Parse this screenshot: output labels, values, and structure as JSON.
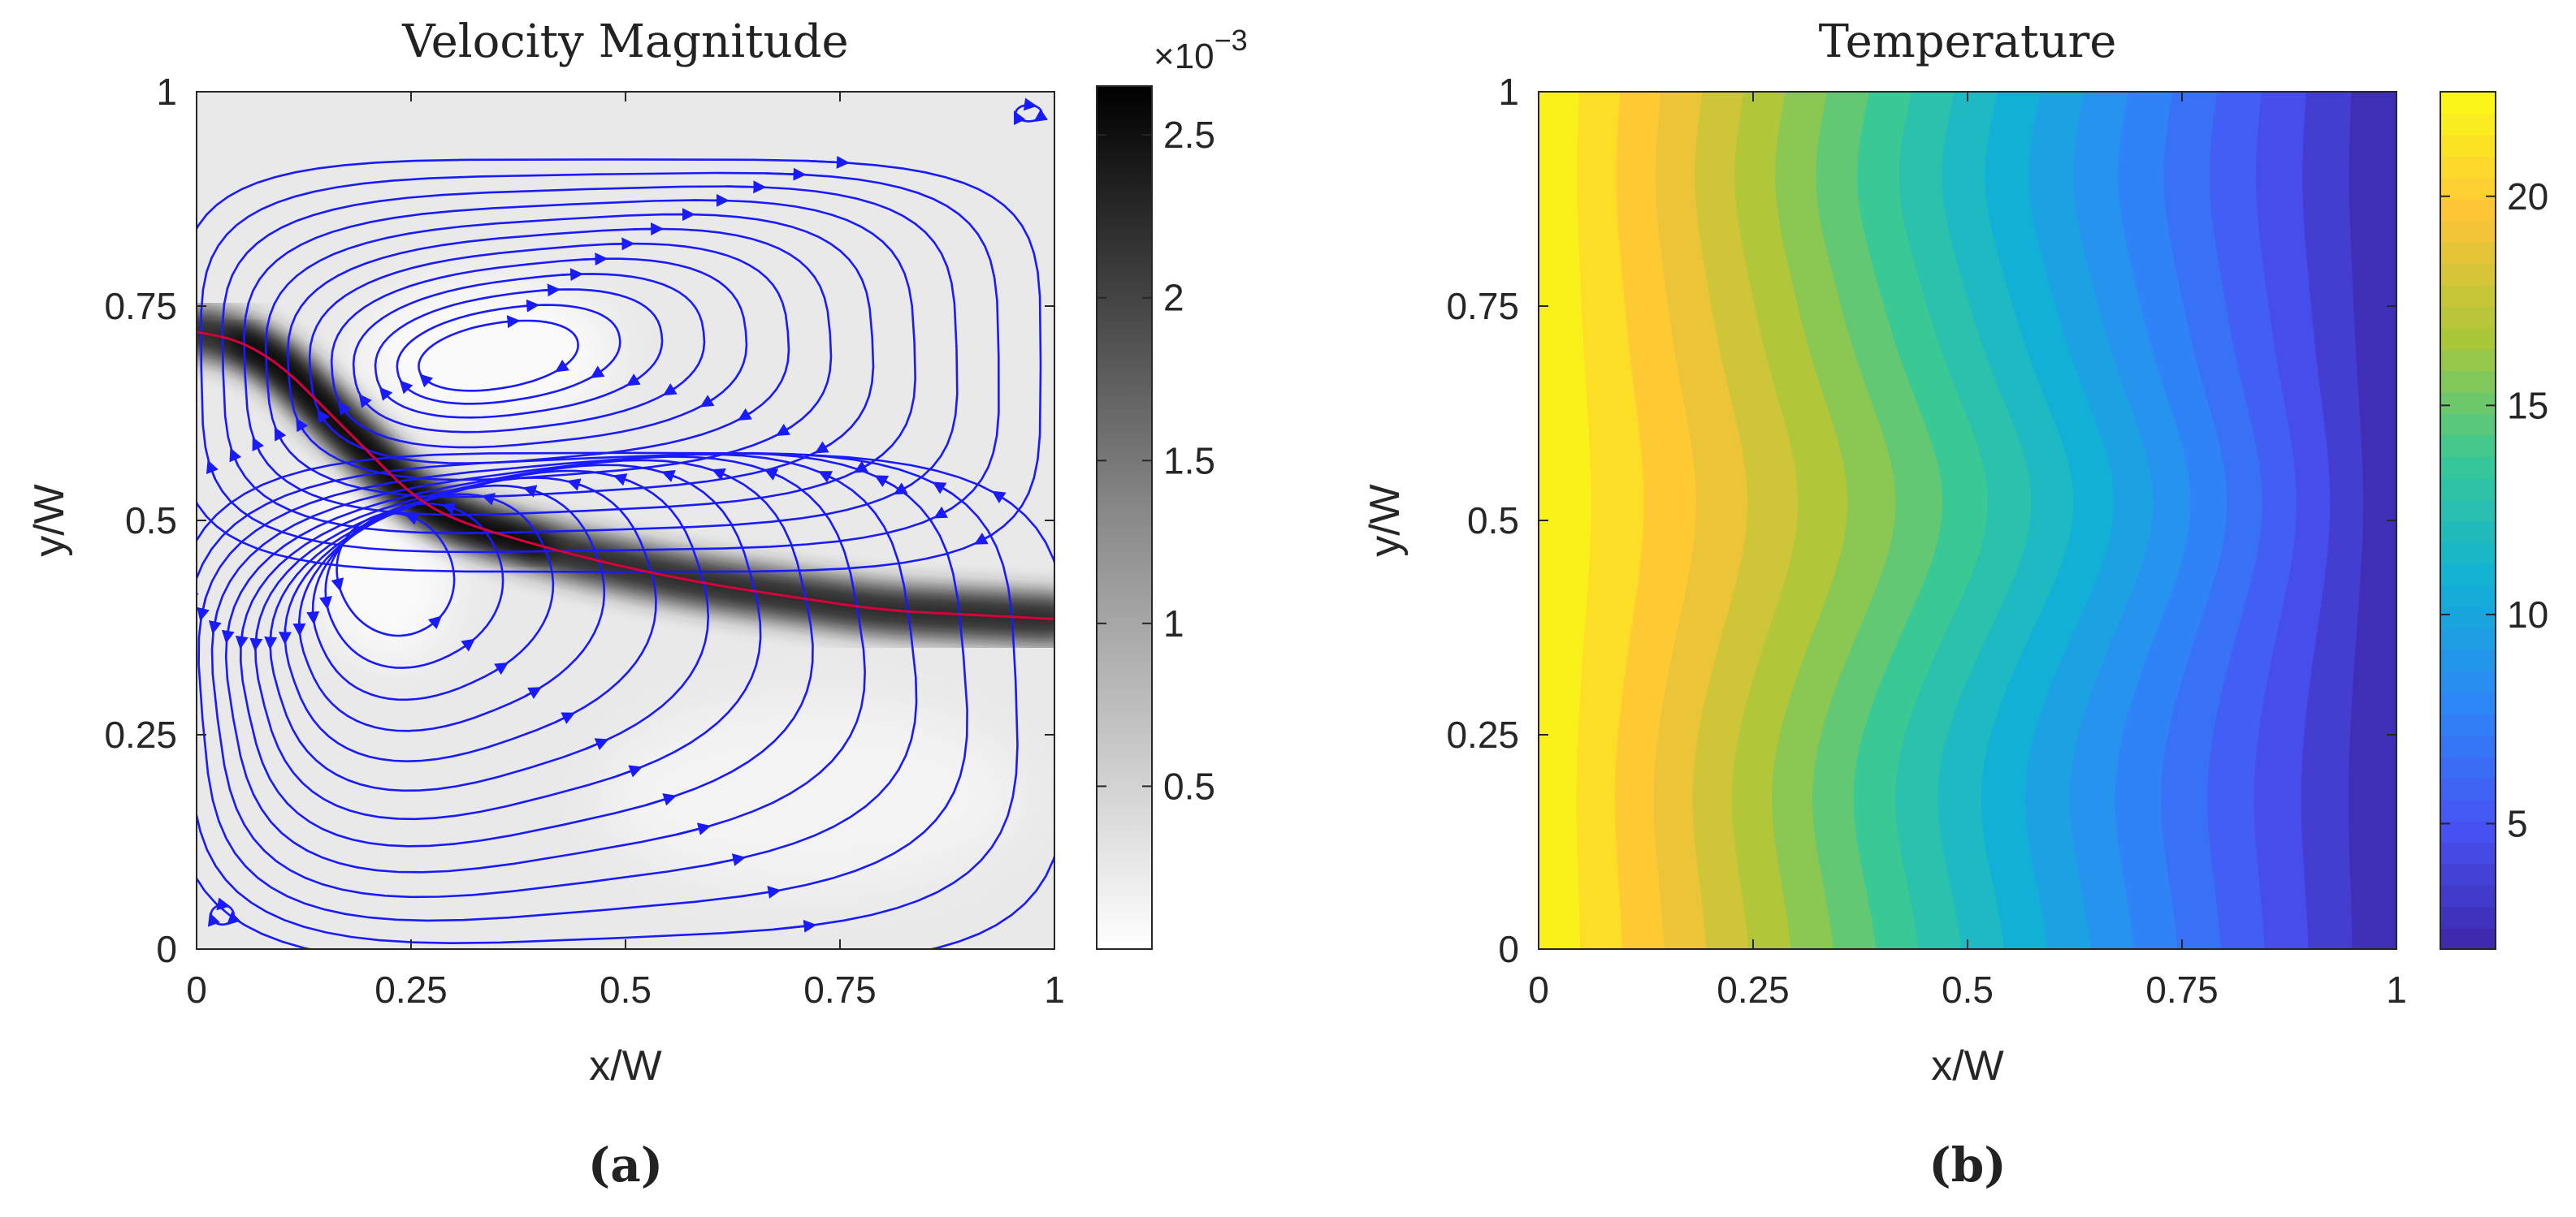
{
  "chart_data": [
    {
      "type": "heatmap",
      "panel_label": "(a)",
      "title": "Velocity Magnitude",
      "xlabel": "x/W",
      "ylabel": "y/W",
      "xlim": [
        0,
        1
      ],
      "ylim": [
        0,
        1
      ],
      "x_ticks": [
        "0",
        "0.25",
        "0.5",
        "0.75",
        "1"
      ],
      "y_ticks": [
        "0",
        "0.25",
        "0.5",
        "0.75",
        "1"
      ],
      "x_tick_values": [
        0,
        0.25,
        0.5,
        0.75,
        1
      ],
      "y_tick_values": [
        0,
        0.25,
        0.5,
        0.75,
        1
      ],
      "colormap": "gray (white = low, black = high)",
      "colorbar": {
        "multiplier": "×10",
        "exponent": "−3",
        "range": [
          0.0,
          2.65
        ],
        "ticks": [
          "0.5",
          "1",
          "1.5",
          "2",
          "2.5"
        ],
        "tick_values": [
          0.5,
          1.0,
          1.5,
          2.0,
          2.5
        ]
      },
      "streamline_color": "#1a1aff",
      "interface_color": "#d4003c",
      "vortices": [
        {
          "name": "upper cell",
          "center": [
            0.34,
            0.69
          ]
        },
        {
          "name": "lower cell",
          "center": [
            0.21,
            0.45
          ]
        }
      ],
      "interface_curve": [
        [
          0.0,
          0.72
        ],
        [
          0.05,
          0.71
        ],
        [
          0.1,
          0.68
        ],
        [
          0.15,
          0.63
        ],
        [
          0.2,
          0.58
        ],
        [
          0.25,
          0.53
        ],
        [
          0.3,
          0.5
        ],
        [
          0.4,
          0.47
        ],
        [
          0.5,
          0.445
        ],
        [
          0.6,
          0.425
        ],
        [
          0.7,
          0.41
        ],
        [
          0.8,
          0.395
        ],
        [
          0.9,
          0.39
        ],
        [
          1.0,
          0.385
        ]
      ],
      "max_speed_band": "along the interface curve, strongest near x/W ≈ 0.1–0.3"
    },
    {
      "type": "heatmap",
      "panel_label": "(b)",
      "title": "Temperature",
      "xlabel": "x/W",
      "ylabel": "y/W",
      "xlim": [
        0,
        1
      ],
      "ylim": [
        0,
        1
      ],
      "x_ticks": [
        "0",
        "0.25",
        "0.5",
        "0.75",
        "1"
      ],
      "y_ticks": [
        "0",
        "0.25",
        "0.5",
        "0.75",
        "1"
      ],
      "x_tick_values": [
        0,
        0.25,
        0.5,
        0.75,
        1
      ],
      "y_tick_values": [
        0,
        0.25,
        0.5,
        0.75,
        1
      ],
      "colormap": "parula",
      "colorbar": {
        "range": [
          2.0,
          22.5
        ],
        "ticks": [
          "5",
          "10",
          "15",
          "20"
        ],
        "tick_values": [
          5,
          10,
          15,
          20
        ]
      },
      "contour_levels": 20,
      "left_boundary_value": 22.5,
      "right_boundary_value": 2.0
    }
  ]
}
